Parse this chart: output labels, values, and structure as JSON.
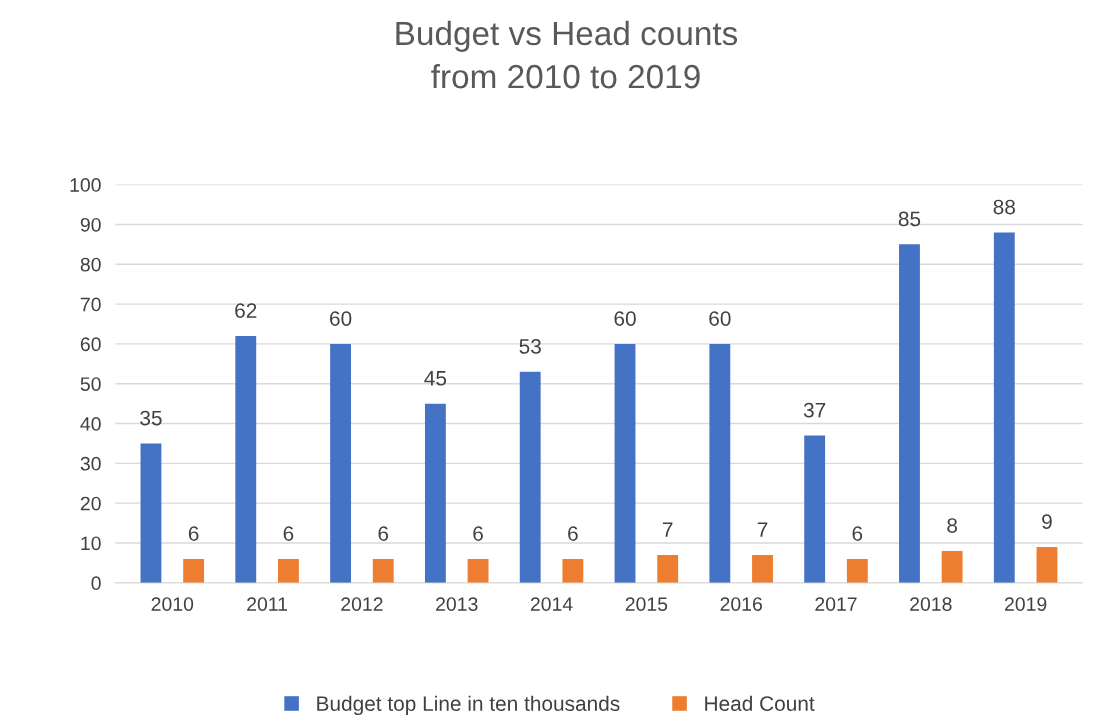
{
  "chart_data": {
    "type": "bar",
    "title": "Budget vs Head counts\nfrom 2010 to 2019",
    "categories": [
      "2010",
      "2011",
      "2012",
      "2013",
      "2014",
      "2015",
      "2016",
      "2017",
      "2018",
      "2019"
    ],
    "series": [
      {
        "name": "Budget top Line in ten thousands",
        "color": "#4472c4",
        "values": [
          35,
          62,
          60,
          45,
          53,
          60,
          60,
          37,
          85,
          88
        ]
      },
      {
        "name": "Head Count",
        "color": "#ed7d31",
        "values": [
          6,
          6,
          6,
          6,
          6,
          7,
          7,
          6,
          8,
          9
        ]
      }
    ],
    "ylim": [
      0,
      100
    ],
    "yticks": [
      0,
      10,
      20,
      30,
      40,
      50,
      60,
      70,
      80,
      90,
      100
    ],
    "grid": "y",
    "legend": "bottom",
    "data_labels": true
  }
}
